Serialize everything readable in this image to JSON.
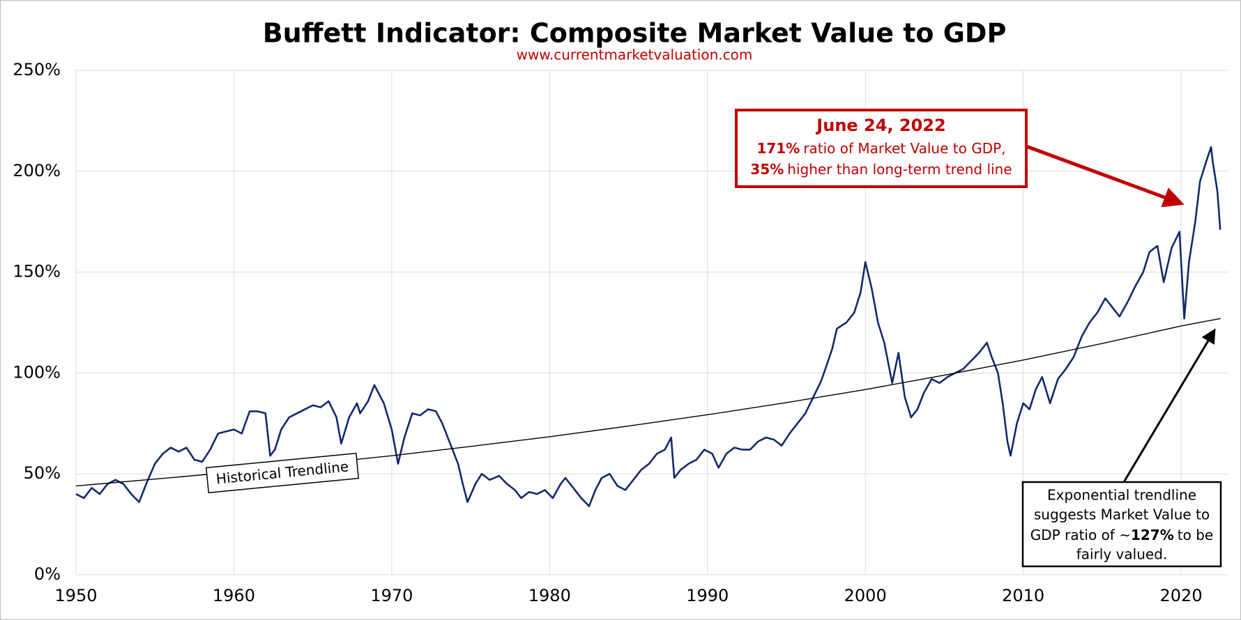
{
  "chart_data": {
    "type": "line",
    "title": "Buffett Indicator: Composite Market Value to GDP",
    "subtitle": "www.currentmarketvaluation.com",
    "xlim": [
      1950,
      2023
    ],
    "xticks": [
      1950,
      1960,
      1970,
      1980,
      1990,
      2000,
      2010,
      2020
    ],
    "ylim": [
      0,
      250
    ],
    "yticks": [
      {
        "value": 0,
        "label": "0%"
      },
      {
        "value": 50,
        "label": "50%"
      },
      {
        "value": 100,
        "label": "100%"
      },
      {
        "value": 150,
        "label": "150%"
      },
      {
        "value": 200,
        "label": "200%"
      },
      {
        "value": 250,
        "label": "250%"
      }
    ],
    "grid": true,
    "series": [
      {
        "color": "#13296b",
        "x": [
          1950,
          1950.5,
          1951,
          1951.5,
          1952,
          1952.5,
          1953,
          1953.5,
          1954,
          1954.5,
          1955,
          1955.5,
          1956,
          1956.5,
          1957,
          1957.5,
          1958,
          1958.5,
          1959,
          1959.5,
          1960,
          1960.5,
          1961,
          1961.5,
          1962,
          1962.3,
          1962.6,
          1963,
          1963.5,
          1964,
          1964.5,
          1965,
          1965.5,
          1966,
          1966.5,
          1966.8,
          1967.3,
          1967.8,
          1968,
          1968.5,
          1968.9,
          1969.5,
          1970,
          1970.4,
          1970.8,
          1971.3,
          1971.8,
          1972.3,
          1972.8,
          1973.2,
          1973.7,
          1974.2,
          1974.5,
          1974.8,
          1975.3,
          1975.7,
          1976.2,
          1976.8,
          1977.3,
          1977.8,
          1978.2,
          1978.7,
          1979.2,
          1979.7,
          1980.2,
          1980.7,
          1981,
          1981.5,
          1982,
          1982.5,
          1982.9,
          1983.3,
          1983.8,
          1984.3,
          1984.8,
          1985.3,
          1985.8,
          1986.3,
          1986.8,
          1987.3,
          1987.7,
          1987.9,
          1988.3,
          1988.8,
          1989.3,
          1989.8,
          1990.3,
          1990.7,
          1991.2,
          1991.7,
          1992.2,
          1992.7,
          1993.2,
          1993.7,
          1994.2,
          1994.7,
          1995.2,
          1995.7,
          1996.2,
          1996.7,
          1997.2,
          1997.6,
          1997.9,
          1998.2,
          1998.8,
          1999.3,
          1999.7,
          2000,
          2000.4,
          2000.8,
          2001.2,
          2001.7,
          2002.1,
          2002.5,
          2002.9,
          2003.3,
          2003.7,
          2004.2,
          2004.7,
          2005.2,
          2005.7,
          2006.2,
          2006.7,
          2007.2,
          2007.7,
          2008,
          2008.4,
          2008.7,
          2009,
          2009.2,
          2009.6,
          2010,
          2010.4,
          2010.8,
          2011.2,
          2011.7,
          2012.2,
          2012.7,
          2013.2,
          2013.7,
          2014.2,
          2014.7,
          2015.2,
          2015.7,
          2016.1,
          2016.6,
          2017.1,
          2017.6,
          2018,
          2018.5,
          2018.9,
          2019.4,
          2019.9,
          2020.2,
          2020.5,
          2020.9,
          2021.2,
          2021.6,
          2021.9,
          2022,
          2022.3,
          2022.48
        ],
        "values": [
          40,
          38,
          43,
          40,
          45,
          47,
          45,
          40,
          36,
          46,
          55,
          60,
          63,
          61,
          63,
          57,
          56,
          62,
          70,
          71,
          72,
          70,
          81,
          81,
          80,
          59,
          62,
          72,
          78,
          80,
          82,
          84,
          83,
          86,
          78,
          65,
          78,
          85,
          80,
          86,
          94,
          85,
          72,
          55,
          68,
          80,
          79,
          82,
          81,
          75,
          65,
          55,
          45,
          36,
          45,
          50,
          47,
          49,
          45,
          42,
          38,
          41,
          40,
          42,
          38,
          45,
          48,
          43,
          38,
          34,
          42,
          48,
          50,
          44,
          42,
          47,
          52,
          55,
          60,
          62,
          68,
          48,
          52,
          55,
          57,
          62,
          60,
          53,
          60,
          63,
          62,
          62,
          66,
          68,
          67,
          64,
          70,
          75,
          80,
          88,
          96,
          105,
          112,
          122,
          125,
          130,
          140,
          155,
          142,
          125,
          115,
          95,
          110,
          88,
          78,
          82,
          90,
          97,
          95,
          98,
          100,
          102,
          106,
          110,
          115,
          108,
          100,
          85,
          66,
          59,
          75,
          85,
          82,
          92,
          98,
          85,
          97,
          102,
          108,
          118,
          125,
          130,
          137,
          132,
          128,
          135,
          143,
          150,
          160,
          163,
          145,
          162,
          170,
          127,
          155,
          175,
          195,
          205,
          212,
          205,
          190,
          171
        ]
      },
      {
        "color": "#000000",
        "x": [
          1950,
          1955,
          1960,
          1965,
          1970,
          1975,
          1980,
          1985,
          1990,
          1995,
          2000,
          2005,
          2010,
          2015,
          2020,
          2022.5
        ],
        "values": [
          44,
          47.4,
          50.9,
          54.9,
          59.0,
          63.6,
          68.4,
          73.7,
          79.3,
          85.3,
          91.8,
          98.9,
          106.4,
          114.6,
          123.3,
          127
        ]
      }
    ],
    "annotations": {
      "trend_label": "Historical Trendline",
      "current": {
        "date": "June 24, 2022",
        "line1_bold": "171%",
        "line1": "ratio of Market Value to GDP,",
        "line2_bold": "35%",
        "line2": "higher than long-term trend line"
      },
      "fair": {
        "line1": "Exponential trendline",
        "line2": "suggests Market Value to",
        "line3": "GDP ratio of ~",
        "line3_bold": "127%",
        "line3_end": "to be",
        "line4": "fairly valued."
      }
    }
  }
}
